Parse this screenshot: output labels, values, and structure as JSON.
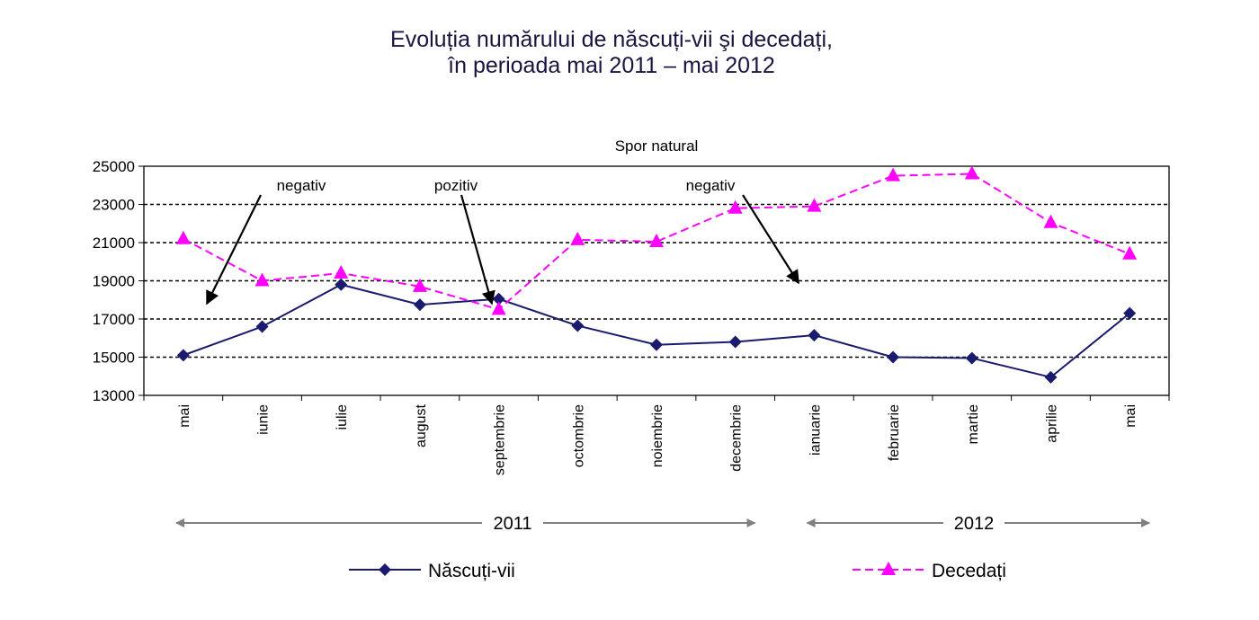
{
  "title": {
    "line1": "Evoluția numărului de născuți-vii şi decedați,",
    "line2": "în perioada mai 2011 – mai 2012"
  },
  "chart_data": {
    "type": "line",
    "subtitle": "Spor natural",
    "categories": [
      "mai",
      "iunie",
      "iulie",
      "august",
      "septembrie",
      "octombrie",
      "noiembrie",
      "decembrie",
      "ianuarie",
      "februarie",
      "martie",
      "aprilie",
      "mai"
    ],
    "series": [
      {
        "name": "Născuți-vii",
        "color": "#1a1a6e",
        "marker": "diamond",
        "dash": "solid",
        "values": [
          15100,
          16600,
          18800,
          17750,
          18050,
          16650,
          15650,
          15800,
          16150,
          15000,
          14950,
          13950,
          17300
        ]
      },
      {
        "name": "Decedați",
        "color": "#ff00ff",
        "marker": "triangle",
        "dash": "dashed",
        "values": [
          21200,
          19000,
          19400,
          18700,
          17500,
          21150,
          21050,
          22800,
          22900,
          24500,
          24600,
          22050,
          20400
        ]
      }
    ],
    "ylim": [
      13000,
      25000
    ],
    "yticks": [
      "13000",
      "15000",
      "17000",
      "19000",
      "21000",
      "23000",
      "25000"
    ],
    "grid": "horizontal-dashed",
    "legend_position": "bottom",
    "annotations": [
      {
        "text": "negativ",
        "month_index": 0
      },
      {
        "text": "pozitiv",
        "month_index": 4
      },
      {
        "text": "negativ",
        "month_index": 7
      }
    ],
    "years": [
      {
        "label": "2011",
        "from_index": 0,
        "to_index": 7
      },
      {
        "label": "2012",
        "from_index": 8,
        "to_index": 12
      }
    ]
  }
}
